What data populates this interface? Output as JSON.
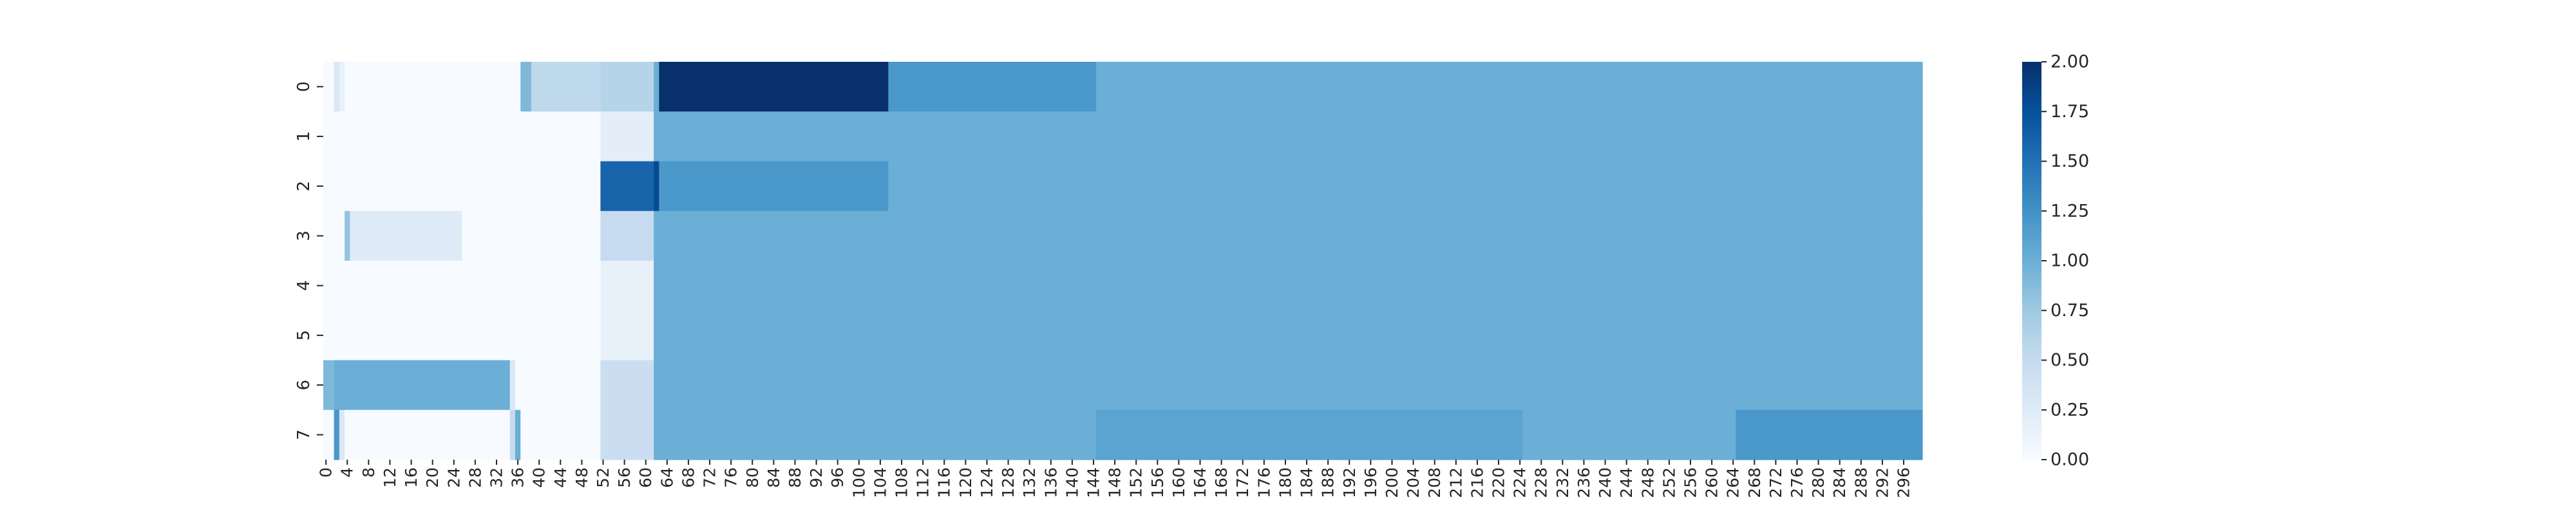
{
  "chart_data": {
    "type": "heatmap",
    "title": "",
    "xlabel": "",
    "ylabel": "",
    "colormap": "Blues",
    "color_range": [
      0,
      2
    ],
    "n_rows": 8,
    "n_cols": 300,
    "row_labels": [
      "0",
      "1",
      "2",
      "3",
      "4",
      "5",
      "6",
      "7"
    ],
    "col_tick_labels": [
      "0",
      "4",
      "8",
      "12",
      "16",
      "20",
      "24",
      "28",
      "32",
      "36",
      "40",
      "44",
      "48",
      "52",
      "56",
      "60",
      "64",
      "68",
      "72",
      "76",
      "80",
      "84",
      "88",
      "92",
      "96",
      "100",
      "104",
      "108",
      "112",
      "116",
      "120",
      "124",
      "128",
      "132",
      "136",
      "140",
      "144",
      "148",
      "152",
      "156",
      "160",
      "164",
      "168",
      "172",
      "176",
      "180",
      "184",
      "188",
      "192",
      "196",
      "200",
      "204",
      "208",
      "212",
      "216",
      "220",
      "224",
      "228",
      "232",
      "236",
      "240",
      "244",
      "248",
      "252",
      "256",
      "260",
      "264",
      "268",
      "272",
      "276",
      "280",
      "284",
      "288",
      "292",
      "296"
    ],
    "colorbar_ticks": [
      "0.00",
      "0.25",
      "0.50",
      "0.75",
      "1.00",
      "1.25",
      "1.50",
      "1.75",
      "2.00"
    ],
    "rows": [
      {
        "row": "0",
        "segments": [
          {
            "start": 0,
            "end": 2,
            "value": 0.0
          },
          {
            "start": 2,
            "end": 3,
            "value": 0.3
          },
          {
            "start": 3,
            "end": 4,
            "value": 0.15
          },
          {
            "start": 4,
            "end": 37,
            "value": 0.0
          },
          {
            "start": 37,
            "end": 39,
            "value": 0.9
          },
          {
            "start": 39,
            "end": 52,
            "value": 0.55
          },
          {
            "start": 52,
            "end": 62,
            "value": 0.6
          },
          {
            "start": 62,
            "end": 63,
            "value": 1.0
          },
          {
            "start": 63,
            "end": 106,
            "value": 2.0
          },
          {
            "start": 106,
            "end": 145,
            "value": 1.2
          },
          {
            "start": 145,
            "end": 300,
            "value": 1.0
          }
        ]
      },
      {
        "row": "1",
        "segments": [
          {
            "start": 0,
            "end": 52,
            "value": 0.0
          },
          {
            "start": 52,
            "end": 62,
            "value": 0.2
          },
          {
            "start": 62,
            "end": 300,
            "value": 1.0
          }
        ]
      },
      {
        "row": "2",
        "segments": [
          {
            "start": 0,
            "end": 52,
            "value": 0.0
          },
          {
            "start": 52,
            "end": 62,
            "value": 1.6
          },
          {
            "start": 62,
            "end": 63,
            "value": 1.8
          },
          {
            "start": 63,
            "end": 106,
            "value": 1.2
          },
          {
            "start": 106,
            "end": 300,
            "value": 1.0
          }
        ]
      },
      {
        "row": "3",
        "segments": [
          {
            "start": 0,
            "end": 4,
            "value": 0.0
          },
          {
            "start": 4,
            "end": 5,
            "value": 0.8
          },
          {
            "start": 5,
            "end": 26,
            "value": 0.25
          },
          {
            "start": 26,
            "end": 52,
            "value": 0.0
          },
          {
            "start": 52,
            "end": 62,
            "value": 0.5
          },
          {
            "start": 62,
            "end": 300,
            "value": 1.0
          }
        ]
      },
      {
        "row": "4",
        "segments": [
          {
            "start": 0,
            "end": 52,
            "value": 0.0
          },
          {
            "start": 52,
            "end": 62,
            "value": 0.15
          },
          {
            "start": 62,
            "end": 300,
            "value": 1.0
          }
        ]
      },
      {
        "row": "5",
        "segments": [
          {
            "start": 0,
            "end": 52,
            "value": 0.0
          },
          {
            "start": 52,
            "end": 62,
            "value": 0.15
          },
          {
            "start": 62,
            "end": 300,
            "value": 1.0
          }
        ]
      },
      {
        "row": "6",
        "segments": [
          {
            "start": 0,
            "end": 2,
            "value": 0.9
          },
          {
            "start": 2,
            "end": 35,
            "value": 1.0
          },
          {
            "start": 35,
            "end": 36,
            "value": 0.3
          },
          {
            "start": 36,
            "end": 52,
            "value": 0.0
          },
          {
            "start": 52,
            "end": 62,
            "value": 0.45
          },
          {
            "start": 62,
            "end": 300,
            "value": 1.0
          }
        ]
      },
      {
        "row": "7",
        "segments": [
          {
            "start": 0,
            "end": 2,
            "value": 0.0
          },
          {
            "start": 2,
            "end": 3,
            "value": 1.2
          },
          {
            "start": 3,
            "end": 4,
            "value": 0.3
          },
          {
            "start": 4,
            "end": 35,
            "value": 0.0
          },
          {
            "start": 35,
            "end": 36,
            "value": 0.5
          },
          {
            "start": 36,
            "end": 37,
            "value": 1.0
          },
          {
            "start": 37,
            "end": 52,
            "value": 0.0
          },
          {
            "start": 52,
            "end": 62,
            "value": 0.45
          },
          {
            "start": 62,
            "end": 145,
            "value": 1.0
          },
          {
            "start": 145,
            "end": 225,
            "value": 1.1
          },
          {
            "start": 225,
            "end": 265,
            "value": 1.0
          },
          {
            "start": 265,
            "end": 300,
            "value": 1.2
          }
        ]
      }
    ]
  }
}
